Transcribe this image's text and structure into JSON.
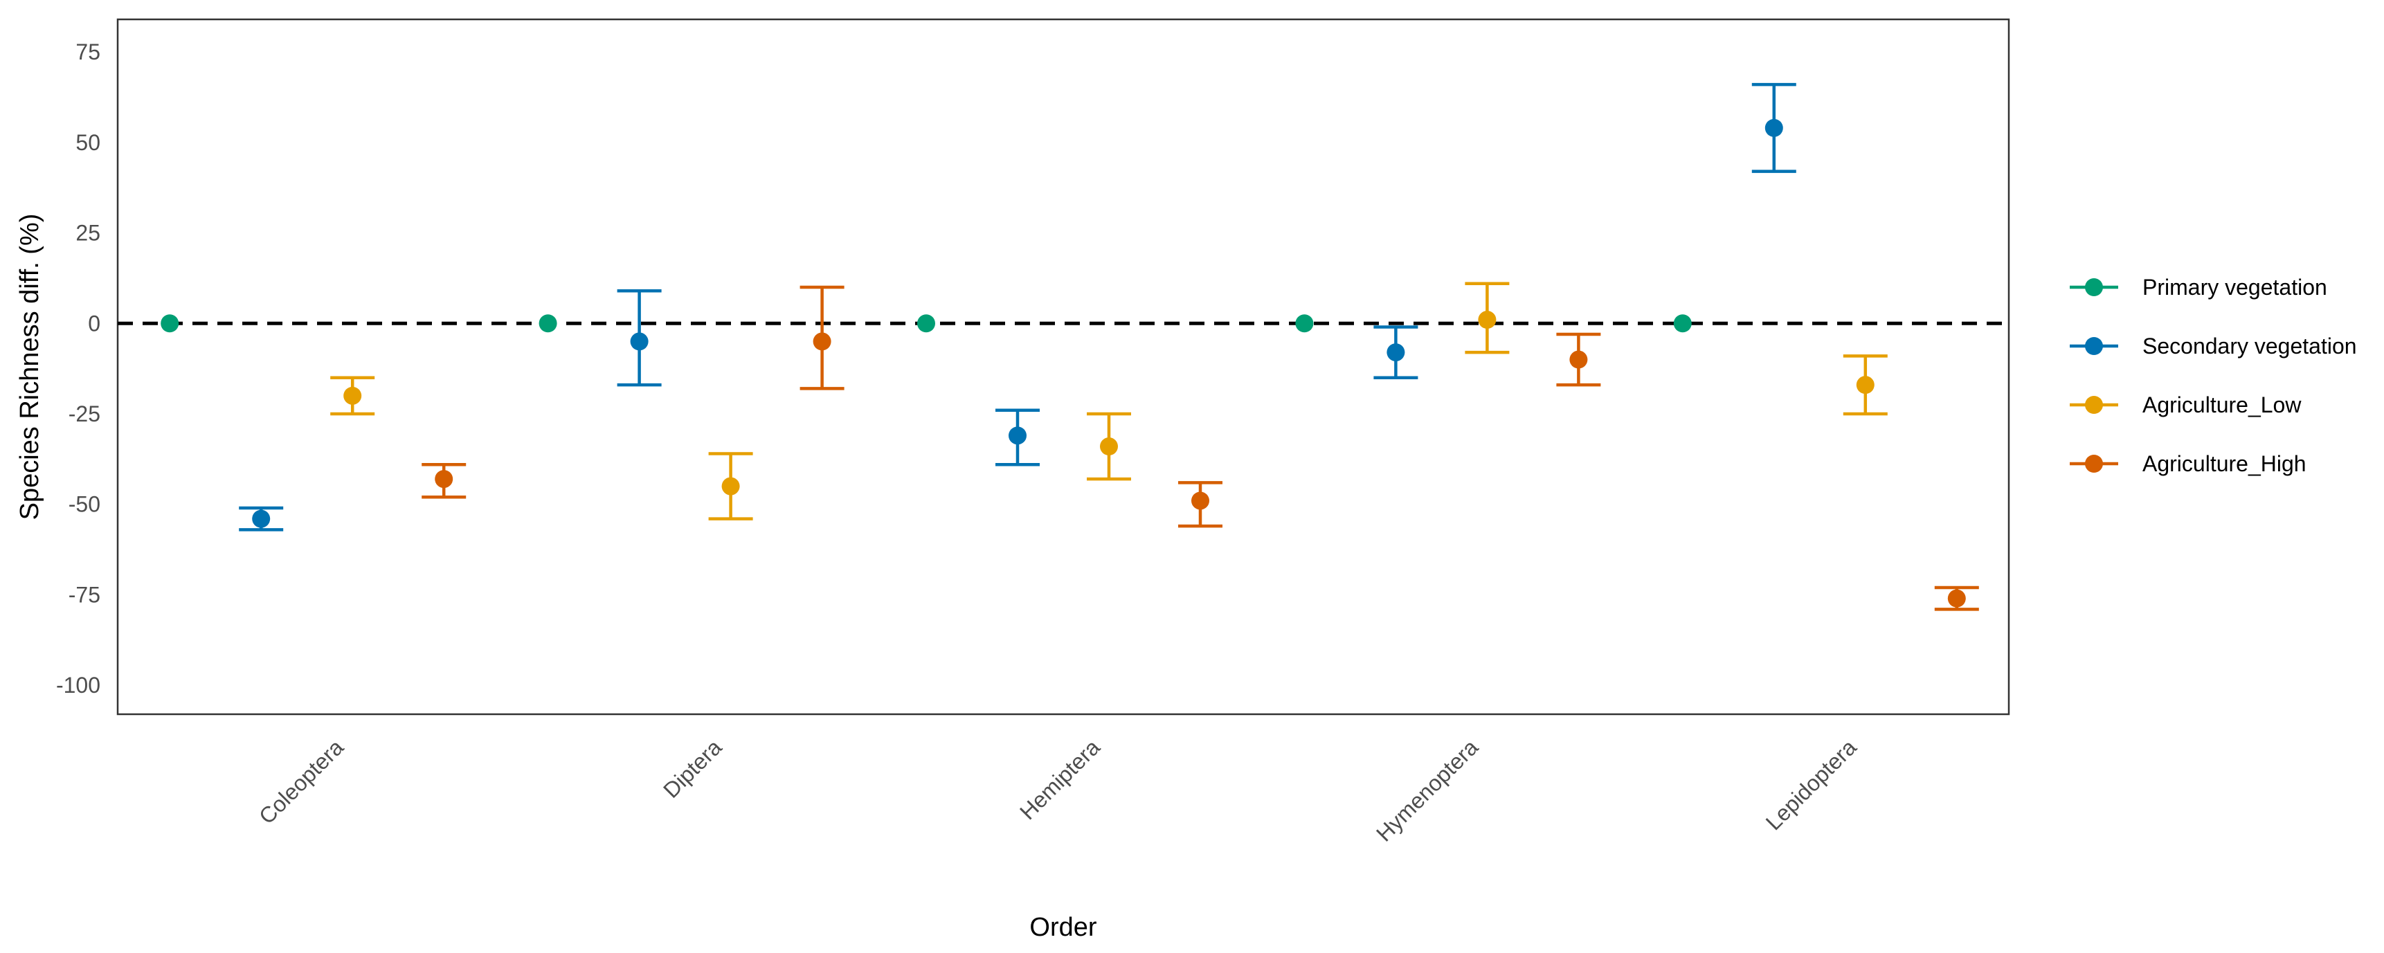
{
  "chart_data": {
    "type": "scatter",
    "xlabel": "Order",
    "ylabel": "Species Richness diff. (%)",
    "categories": [
      "Coleoptera",
      "Diptera",
      "Hemiptera",
      "Hymenoptera",
      "Lepidoptera"
    ],
    "ylim": [
      -108,
      84
    ],
    "yticks": [
      75,
      50,
      25,
      0,
      -25,
      -50,
      -75,
      -100
    ],
    "ytick_labels": [
      "75",
      "50",
      "25",
      "0",
      "-25",
      "-50",
      "-75",
      "-100"
    ],
    "reference_line": 0,
    "grid": false,
    "legend_position": "right",
    "series": [
      {
        "name": "Primary vegetation",
        "color": "#009E73",
        "values": [
          0,
          0,
          0,
          0,
          0
        ],
        "lower": [
          null,
          null,
          null,
          null,
          null
        ],
        "upper": [
          null,
          null,
          null,
          null,
          null
        ]
      },
      {
        "name": "Secondary vegetation",
        "color": "#0072B2",
        "values": [
          -54,
          -5,
          -31,
          -8,
          54
        ],
        "lower": [
          -57,
          -17,
          -39,
          -15,
          42
        ],
        "upper": [
          -51,
          9,
          -24,
          -1,
          66
        ]
      },
      {
        "name": "Agriculture_Low",
        "color": "#E69F00",
        "values": [
          -20,
          -45,
          -34,
          1,
          -17
        ],
        "lower": [
          -25,
          -54,
          -43,
          -8,
          -25
        ],
        "upper": [
          -15,
          -36,
          -25,
          11,
          -9
        ]
      },
      {
        "name": "Agriculture_High",
        "color": "#D55E00",
        "values": [
          -43,
          -5,
          -49,
          -10,
          -76
        ],
        "lower": [
          -48,
          -18,
          -56,
          -17,
          -79
        ],
        "upper": [
          -39,
          10,
          -44,
          -3,
          -73
        ]
      }
    ]
  }
}
